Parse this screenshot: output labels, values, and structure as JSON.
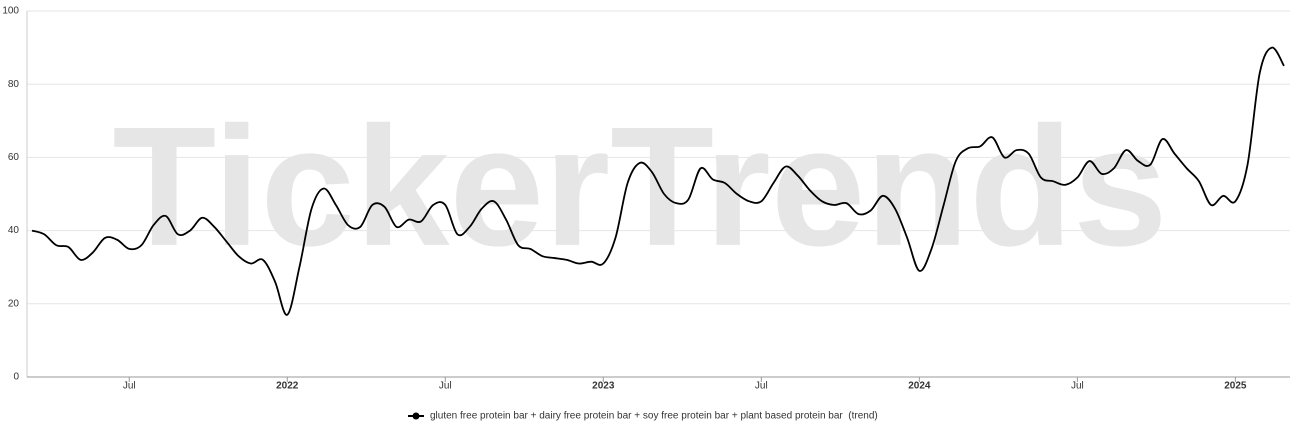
{
  "chart_data": {
    "type": "line",
    "watermark": "TickerTrends",
    "categories": [
      null,
      null,
      null,
      null,
      null,
      null,
      null,
      null,
      "Jul",
      null,
      null,
      null,
      null,
      null,
      null,
      null,
      null,
      null,
      null,
      null,
      null,
      "2022",
      null,
      null,
      null,
      null,
      null,
      null,
      null,
      null,
      null,
      null,
      null,
      null,
      "Jul",
      null,
      null,
      null,
      null,
      null,
      null,
      null,
      null,
      null,
      null,
      null,
      null,
      "2023",
      null,
      null,
      null,
      null,
      null,
      null,
      null,
      null,
      null,
      null,
      null,
      null,
      "Jul",
      null,
      null,
      null,
      null,
      null,
      null,
      null,
      null,
      null,
      null,
      null,
      null,
      "2024",
      null,
      null,
      null,
      null,
      null,
      null,
      null,
      null,
      null,
      null,
      null,
      null,
      "Jul",
      null,
      null,
      null,
      null,
      null,
      null,
      null,
      null,
      null,
      null,
      null,
      null,
      "2025",
      null,
      null,
      null,
      null
    ],
    "series": [
      {
        "name": "gluten free protein bar + dairy free protein bar + soy free protein bar + plant based protein bar  (trend)",
        "color": "#000000",
        "values": [
          40,
          39,
          36,
          35.5,
          32,
          34,
          38,
          37.5,
          35,
          36,
          41.5,
          44,
          39,
          40,
          43.5,
          41,
          37,
          33,
          31,
          32,
          26,
          17,
          30,
          46,
          51.5,
          47,
          41.5,
          41,
          47,
          46.5,
          41,
          43,
          42.5,
          47,
          47,
          39,
          41,
          46,
          48,
          43,
          36,
          35,
          33,
          32.5,
          32,
          31,
          31.5,
          31,
          38,
          53,
          58.5,
          56,
          50,
          47.5,
          48.5,
          57,
          54,
          53,
          50,
          48,
          48,
          53,
          57.5,
          55,
          51,
          48,
          47,
          47.5,
          44.5,
          45.5,
          49.5,
          46,
          38,
          29,
          35,
          47,
          59,
          62.5,
          63,
          65.5,
          60,
          62,
          61,
          54.5,
          53.5,
          52.5,
          54.5,
          59,
          55.5,
          57,
          62,
          59,
          58,
          65,
          61,
          57,
          53.5,
          47,
          49.5,
          48,
          58,
          83,
          90,
          85
        ]
      }
    ],
    "ylim": [
      0,
      100
    ],
    "yticks": [
      0,
      20,
      40,
      60,
      80,
      100
    ],
    "grid": true
  }
}
